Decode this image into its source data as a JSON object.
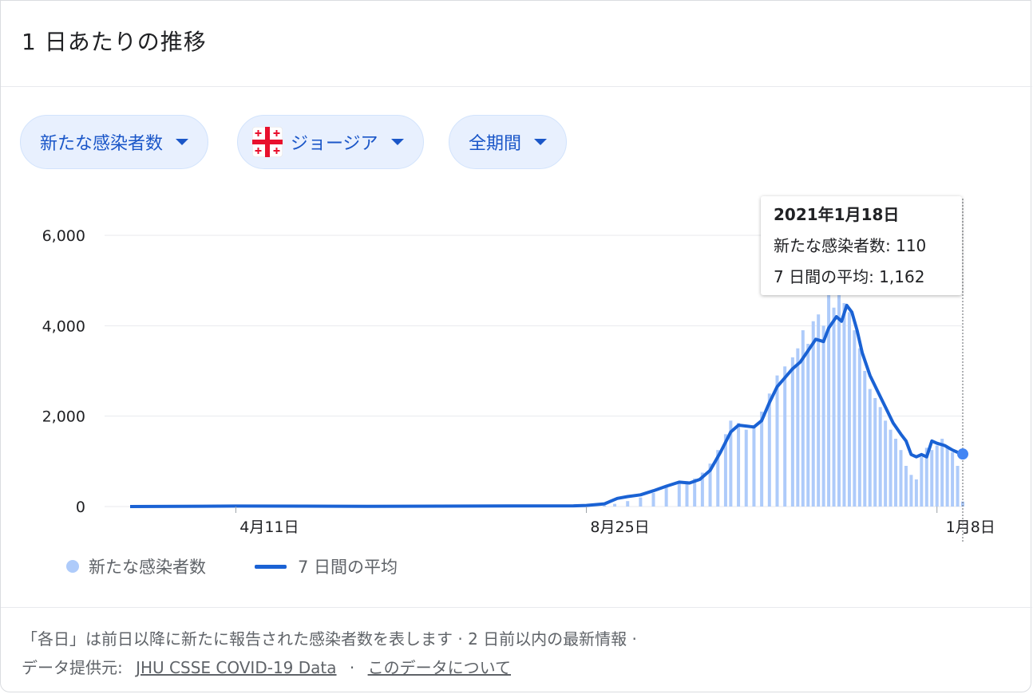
{
  "header": {
    "title": "1 日あたりの推移"
  },
  "filters": [
    {
      "label": "新たな感染者数"
    },
    {
      "label": "ジョージア",
      "icon": "georgia-flag-icon"
    },
    {
      "label": "全期間"
    }
  ],
  "colors": {
    "bar": "#aecbfa",
    "line": "#1a62d4",
    "chip_text": "#1a56c8",
    "grid": "#e8eaed"
  },
  "tooltip": {
    "date": "2021年1月18日",
    "cases_label": "新たな感染者数: 110",
    "avg_label": "7 日間の平均: 1,162"
  },
  "legend": {
    "cases": "新たな感染者数",
    "average": "7 日間の平均"
  },
  "footer": {
    "line1": "「各日」は前日以降に新たに報告された感染者数を表します · 2 日前以内の最新情報 ·",
    "source_prefix": "データ提供元:",
    "source_link": "JHU CSSE COVID-19 Data",
    "separator": "·",
    "about_link": "このデータについて"
  },
  "chart_data": {
    "type": "bar",
    "title": "",
    "xlabel": "",
    "ylabel": "",
    "ylim": [
      0,
      6000
    ],
    "yticks": [
      "0",
      "2,000",
      "4,000",
      "6,000"
    ],
    "xticks": [
      {
        "label": "4月11日",
        "date": "2020-04-11"
      },
      {
        "label": "8月25日",
        "date": "2020-08-25"
      },
      {
        "label": "1月8日",
        "date": "2021-01-08"
      }
    ],
    "x_start": "2020-03-01",
    "x_end": "2021-01-18",
    "series": [
      {
        "name": "新たな感染者数",
        "kind": "bar",
        "points": [
          [
            "2020-09-01",
            20
          ],
          [
            "2020-09-05",
            60
          ],
          [
            "2020-09-10",
            120
          ],
          [
            "2020-09-15",
            200
          ],
          [
            "2020-09-20",
            300
          ],
          [
            "2020-09-25",
            420
          ],
          [
            "2020-09-30",
            520
          ],
          [
            "2020-10-03",
            560
          ],
          [
            "2020-10-06",
            620
          ],
          [
            "2020-10-09",
            750
          ],
          [
            "2020-10-12",
            950
          ],
          [
            "2020-10-15",
            1250
          ],
          [
            "2020-10-18",
            1600
          ],
          [
            "2020-10-20",
            1900
          ],
          [
            "2020-10-23",
            1850
          ],
          [
            "2020-10-26",
            1700
          ],
          [
            "2020-10-29",
            1800
          ],
          [
            "2020-11-01",
            2100
          ],
          [
            "2020-11-04",
            2500
          ],
          [
            "2020-11-07",
            2900
          ],
          [
            "2020-11-10",
            3100
          ],
          [
            "2020-11-13",
            3300
          ],
          [
            "2020-11-15",
            3500
          ],
          [
            "2020-11-17",
            3900
          ],
          [
            "2020-11-19",
            3600
          ],
          [
            "2020-11-21",
            4100
          ],
          [
            "2020-11-23",
            4250
          ],
          [
            "2020-11-25",
            4000
          ],
          [
            "2020-11-27",
            4700
          ],
          [
            "2020-11-29",
            4400
          ],
          [
            "2020-12-01",
            4800
          ],
          [
            "2020-12-03",
            4500
          ],
          [
            "2020-12-05",
            4300
          ],
          [
            "2020-12-07",
            3900
          ],
          [
            "2020-12-09",
            3500
          ],
          [
            "2020-12-11",
            3000
          ],
          [
            "2020-12-13",
            2600
          ],
          [
            "2020-12-15",
            2400
          ],
          [
            "2020-12-17",
            2200
          ],
          [
            "2020-12-19",
            1900
          ],
          [
            "2020-12-21",
            1700
          ],
          [
            "2020-12-23",
            1500
          ],
          [
            "2020-12-25",
            1250
          ],
          [
            "2020-12-27",
            900
          ],
          [
            "2020-12-29",
            700
          ],
          [
            "2020-12-31",
            600
          ],
          [
            "2021-01-02",
            1100
          ],
          [
            "2021-01-04",
            1300
          ],
          [
            "2021-01-06",
            1250
          ],
          [
            "2021-01-08",
            1350
          ],
          [
            "2021-01-10",
            1500
          ],
          [
            "2021-01-12",
            1300
          ],
          [
            "2021-01-14",
            1200
          ],
          [
            "2021-01-16",
            900
          ],
          [
            "2021-01-18",
            110
          ]
        ]
      },
      {
        "name": "7 日間の平均",
        "kind": "line",
        "points": [
          [
            "2020-03-01",
            0
          ],
          [
            "2020-04-11",
            10
          ],
          [
            "2020-06-01",
            5
          ],
          [
            "2020-08-20",
            15
          ],
          [
            "2020-08-25",
            25
          ],
          [
            "2020-09-01",
            60
          ],
          [
            "2020-09-06",
            180
          ],
          [
            "2020-09-10",
            220
          ],
          [
            "2020-09-15",
            260
          ],
          [
            "2020-09-20",
            350
          ],
          [
            "2020-09-25",
            450
          ],
          [
            "2020-09-30",
            540
          ],
          [
            "2020-10-04",
            520
          ],
          [
            "2020-10-08",
            600
          ],
          [
            "2020-10-12",
            800
          ],
          [
            "2020-10-16",
            1200
          ],
          [
            "2020-10-20",
            1650
          ],
          [
            "2020-10-23",
            1800
          ],
          [
            "2020-10-26",
            1780
          ],
          [
            "2020-10-29",
            1760
          ],
          [
            "2020-11-01",
            1900
          ],
          [
            "2020-11-04",
            2300
          ],
          [
            "2020-11-07",
            2650
          ],
          [
            "2020-11-10",
            2850
          ],
          [
            "2020-11-13",
            3050
          ],
          [
            "2020-11-16",
            3200
          ],
          [
            "2020-11-19",
            3450
          ],
          [
            "2020-11-22",
            3700
          ],
          [
            "2020-11-25",
            3650
          ],
          [
            "2020-11-27",
            3950
          ],
          [
            "2020-11-30",
            4200
          ],
          [
            "2020-12-02",
            4100
          ],
          [
            "2020-12-04",
            4450
          ],
          [
            "2020-12-06",
            4300
          ],
          [
            "2020-12-08",
            3900
          ],
          [
            "2020-12-10",
            3400
          ],
          [
            "2020-12-13",
            2900
          ],
          [
            "2020-12-16",
            2550
          ],
          [
            "2020-12-19",
            2200
          ],
          [
            "2020-12-22",
            1850
          ],
          [
            "2020-12-25",
            1600
          ],
          [
            "2020-12-27",
            1450
          ],
          [
            "2020-12-29",
            1150
          ],
          [
            "2020-12-31",
            1100
          ],
          [
            "2021-01-02",
            1150
          ],
          [
            "2021-01-04",
            1100
          ],
          [
            "2021-01-06",
            1450
          ],
          [
            "2021-01-08",
            1400
          ],
          [
            "2021-01-11",
            1350
          ],
          [
            "2021-01-14",
            1250
          ],
          [
            "2021-01-16",
            1200
          ],
          [
            "2021-01-18",
            1162
          ]
        ]
      }
    ],
    "grid": true,
    "legend_position": "bottom-left",
    "highlighted_date": "2021-01-18"
  }
}
